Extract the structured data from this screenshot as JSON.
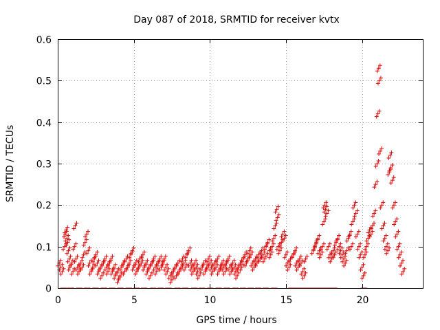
{
  "chart_data": {
    "type": "scatter",
    "title": "Day 087 of 2018, SRMTID for receiver kvtx",
    "xlabel": "GPS time / hours",
    "ylabel": "SRMTID / TECUs",
    "xlim": [
      0,
      24
    ],
    "ylim": [
      0,
      0.6
    ],
    "xticks": [
      0,
      5,
      10,
      15,
      20
    ],
    "xtick_labels": [
      "0",
      "5",
      "10",
      "15",
      "20"
    ],
    "yticks": [
      0,
      0.1,
      0.2,
      0.3,
      0.4,
      0.5,
      0.6
    ],
    "ytick_labels": [
      "0",
      "0.1",
      "0.2",
      "0.3",
      "0.4",
      "0.5",
      "0.6"
    ],
    "grid": true,
    "marker": "+",
    "color": "#e00000",
    "series": [
      {
        "name": "SRMTID",
        "x": [
          0.1,
          0.2,
          0.3,
          0.45,
          0.5,
          0.55,
          0.6,
          0.65,
          0.7,
          0.75,
          0.8,
          0.9,
          1.0,
          1.1,
          1.15,
          1.2,
          1.3,
          1.4,
          1.5,
          1.6,
          1.7,
          1.8,
          1.9,
          2.0,
          2.1,
          2.2,
          2.3,
          2.4,
          2.5,
          2.6,
          2.7,
          2.8,
          2.9,
          3.0,
          3.1,
          3.2,
          3.3,
          3.4,
          3.5,
          3.6,
          3.7,
          3.8,
          3.9,
          4.0,
          4.1,
          4.2,
          4.3,
          4.4,
          4.5,
          4.6,
          4.7,
          4.8,
          4.9,
          5.0,
          5.1,
          5.2,
          5.3,
          5.4,
          5.5,
          5.6,
          5.7,
          5.8,
          5.9,
          6.0,
          6.1,
          6.2,
          6.3,
          6.4,
          6.5,
          6.6,
          6.7,
          6.8,
          6.9,
          7.0,
          7.1,
          7.2,
          7.4,
          7.5,
          7.6,
          7.7,
          7.8,
          7.9,
          8.0,
          8.1,
          8.2,
          8.3,
          8.4,
          8.5,
          8.6,
          8.7,
          8.8,
          8.9,
          9.0,
          9.1,
          9.2,
          9.3,
          9.5,
          9.6,
          9.7,
          9.8,
          9.9,
          10.0,
          10.1,
          10.2,
          10.3,
          10.4,
          10.5,
          10.6,
          10.7,
          10.8,
          10.9,
          11.0,
          11.1,
          11.2,
          11.3,
          11.4,
          11.5,
          11.6,
          11.7,
          11.8,
          11.9,
          12.0,
          12.1,
          12.2,
          12.3,
          12.4,
          12.5,
          12.6,
          12.7,
          12.8,
          12.9,
          13.0,
          13.1,
          13.2,
          13.3,
          13.4,
          13.5,
          13.6,
          13.7,
          13.8,
          13.9,
          14.0,
          14.1,
          14.2,
          14.3,
          14.4,
          14.45,
          14.5,
          14.6,
          14.7,
          14.8,
          14.9,
          15.0,
          15.1,
          15.2,
          15.3,
          15.5,
          15.6,
          15.7,
          15.8,
          15.9,
          16.0,
          16.1,
          16.2,
          16.3,
          16.8,
          16.9,
          17.0,
          17.1,
          17.2,
          17.3,
          17.4,
          17.5,
          17.55,
          17.6,
          17.7,
          17.8,
          17.9,
          18.0,
          18.1,
          18.2,
          18.3,
          18.4,
          18.5,
          18.6,
          18.7,
          18.8,
          18.9,
          19.0,
          19.1,
          19.2,
          19.3,
          19.4,
          19.5,
          19.6,
          19.7,
          19.8,
          19.9,
          20.0,
          20.1,
          20.2,
          20.3,
          20.4,
          20.5,
          20.6,
          20.7,
          20.8,
          20.9,
          21.0,
          21.05,
          21.1,
          21.15,
          21.2,
          21.3,
          21.4,
          21.5,
          21.6,
          21.7,
          21.8,
          21.85,
          21.9,
          22.0,
          22.1,
          22.2,
          22.3,
          22.4,
          22.5,
          22.6,
          22.7
        ],
        "y": [
          0.06,
          0.05,
          0.04,
          0.1,
          0.13,
          0.14,
          0.12,
          0.11,
          0.09,
          0.07,
          0.05,
          0.06,
          0.04,
          0.1,
          0.15,
          0.07,
          0.05,
          0.04,
          0.06,
          0.05,
          0.08,
          0.11,
          0.13,
          0.09,
          0.06,
          0.04,
          0.05,
          0.07,
          0.08,
          0.06,
          0.04,
          0.05,
          0.03,
          0.06,
          0.07,
          0.05,
          0.04,
          0.06,
          0.07,
          0.04,
          0.05,
          0.03,
          0.04,
          0.02,
          0.03,
          0.05,
          0.06,
          0.04,
          0.07,
          0.05,
          0.06,
          0.08,
          0.09,
          0.05,
          0.06,
          0.04,
          0.05,
          0.07,
          0.06,
          0.08,
          0.05,
          0.06,
          0.04,
          0.05,
          0.03,
          0.06,
          0.07,
          0.05,
          0.04,
          0.06,
          0.07,
          0.05,
          0.06,
          0.07,
          0.05,
          0.04,
          0.03,
          0.02,
          0.04,
          0.05,
          0.03,
          0.06,
          0.04,
          0.05,
          0.07,
          0.06,
          0.05,
          0.08,
          0.09,
          0.06,
          0.05,
          0.04,
          0.06,
          0.05,
          0.04,
          0.03,
          0.05,
          0.06,
          0.04,
          0.05,
          0.07,
          0.06,
          0.05,
          0.04,
          0.06,
          0.05,
          0.07,
          0.04,
          0.05,
          0.06,
          0.05,
          0.04,
          0.06,
          0.07,
          0.05,
          0.04,
          0.06,
          0.05,
          0.04,
          0.03,
          0.05,
          0.06,
          0.05,
          0.07,
          0.08,
          0.06,
          0.07,
          0.09,
          0.08,
          0.06,
          0.05,
          0.07,
          0.06,
          0.08,
          0.07,
          0.09,
          0.08,
          0.07,
          0.1,
          0.11,
          0.09,
          0.08,
          0.1,
          0.12,
          0.15,
          0.19,
          0.17,
          0.1,
          0.09,
          0.11,
          0.13,
          0.12,
          0.08,
          0.06,
          0.05,
          0.07,
          0.08,
          0.09,
          0.06,
          0.05,
          0.07,
          0.06,
          0.04,
          0.03,
          0.07,
          0.09,
          0.1,
          0.11,
          0.12,
          0.09,
          0.08,
          0.1,
          0.16,
          0.2,
          0.19,
          0.18,
          0.1,
          0.08,
          0.07,
          0.09,
          0.08,
          0.11,
          0.12,
          0.1,
          0.09,
          0.08,
          0.07,
          0.06,
          0.09,
          0.12,
          0.13,
          0.1,
          0.16,
          0.2,
          0.18,
          0.13,
          0.1,
          0.08,
          0.05,
          0.03,
          0.08,
          0.1,
          0.12,
          0.14,
          0.13,
          0.15,
          0.18,
          0.25,
          0.3,
          0.42,
          0.53,
          0.5,
          0.33,
          0.2,
          0.15,
          0.12,
          0.1,
          0.09,
          0.28,
          0.32,
          0.29,
          0.26,
          0.2,
          0.16,
          0.13,
          0.1,
          0.08,
          0.06,
          0.04
        ],
        "zero_x": [
          0.3,
          0.45,
          0.75,
          0.95,
          1.35,
          1.5,
          1.85,
          2.0,
          2.4,
          2.55,
          2.95,
          3.1,
          3.5,
          3.65,
          4.05,
          4.2,
          4.6,
          4.75,
          5.1,
          5.25,
          5.6,
          5.75,
          6.2,
          6.35,
          6.7,
          6.85,
          7.2,
          7.35,
          7.8,
          7.95,
          8.3,
          8.45,
          8.9,
          9.05,
          9.4,
          9.55,
          9.95,
          10.1,
          10.5,
          10.65,
          11.05,
          11.2,
          11.6,
          11.75,
          12.1,
          12.25,
          12.6,
          12.75,
          13.1,
          13.25,
          13.6,
          13.75,
          14.15,
          14.3,
          15.3,
          15.45,
          15.6,
          15.75,
          15.9,
          16.05,
          16.25,
          16.4,
          16.55,
          16.7,
          16.85,
          17.0,
          17.15,
          17.3,
          17.5,
          17.65,
          17.8,
          17.95,
          18.1,
          18.25,
          20.05,
          20.2
        ]
      }
    ]
  }
}
